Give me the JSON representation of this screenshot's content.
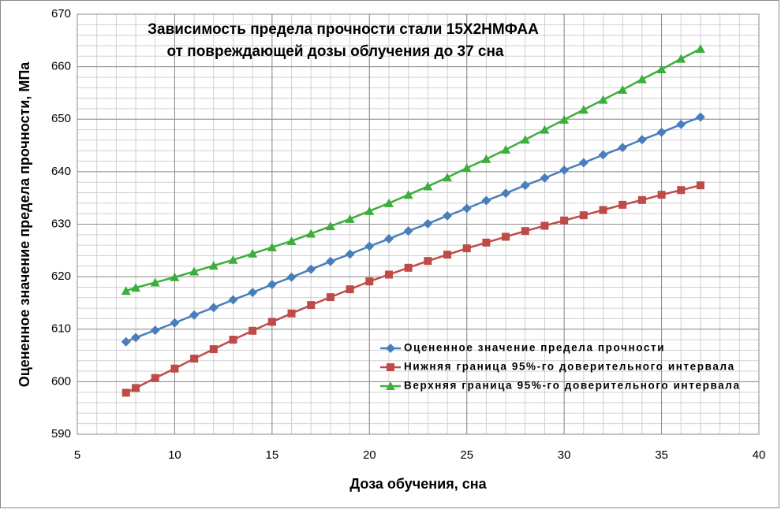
{
  "chart_data": {
    "type": "line",
    "title": [
      "Зависимость предела прочности стали 15Х2НМФАА",
      "от повреждающей дозы облучения до 37 сна"
    ],
    "x_label": "Доза обучения, сна",
    "y_label": "Оцененное значение предела прочности, МПа",
    "x": [
      7.5,
      8,
      9,
      10,
      11,
      12,
      13,
      14,
      15,
      16,
      17,
      18,
      19,
      20,
      21,
      22,
      23,
      24,
      25,
      26,
      27,
      28,
      29,
      30,
      31,
      32,
      33,
      34,
      35,
      36,
      37
    ],
    "series": [
      {
        "name": "Оцененное значение предела прочности",
        "color": "#4a7ebb",
        "marker": "diamond",
        "values": [
          607.6,
          608.4,
          609.8,
          611.2,
          612.7,
          614.1,
          615.6,
          617.0,
          618.5,
          619.9,
          621.4,
          622.9,
          624.3,
          625.8,
          627.2,
          628.7,
          630.1,
          631.6,
          633.0,
          634.5,
          635.9,
          637.4,
          638.8,
          640.3,
          641.7,
          643.2,
          644.6,
          646.1,
          647.5,
          649.0,
          650.4
        ]
      },
      {
        "name": "Нижняя граница 95%-го доверительного интервала",
        "color": "#be4b48",
        "marker": "square",
        "values": [
          597.9,
          598.8,
          600.7,
          602.5,
          604.4,
          606.2,
          608.0,
          609.7,
          611.4,
          613.0,
          614.6,
          616.1,
          617.6,
          619.1,
          620.4,
          621.7,
          623.0,
          624.2,
          625.4,
          626.5,
          627.6,
          628.7,
          629.7,
          630.7,
          631.7,
          632.7,
          633.7,
          634.6,
          635.6,
          636.5,
          637.4
        ]
      },
      {
        "name": "Верхняя граница 95%-го доверительного интервала",
        "color": "#3cae3c",
        "marker": "triangle",
        "values": [
          617.3,
          617.9,
          618.9,
          619.9,
          621.0,
          622.1,
          623.2,
          624.4,
          625.6,
          626.8,
          628.2,
          629.6,
          631.0,
          632.5,
          634.0,
          635.6,
          637.2,
          638.9,
          640.7,
          642.4,
          644.2,
          646.1,
          648.0,
          649.9,
          651.8,
          653.7,
          655.6,
          657.6,
          659.5,
          661.5,
          663.4
        ]
      }
    ],
    "xlim": [
      5,
      40
    ],
    "xticks": [
      5,
      10,
      15,
      20,
      25,
      30,
      35,
      40
    ],
    "ylim": [
      590,
      670
    ],
    "yticks": [
      590,
      600,
      610,
      620,
      630,
      640,
      650,
      660,
      670
    ],
    "grid": true,
    "minor_grid": true,
    "legend": "lower-right"
  }
}
